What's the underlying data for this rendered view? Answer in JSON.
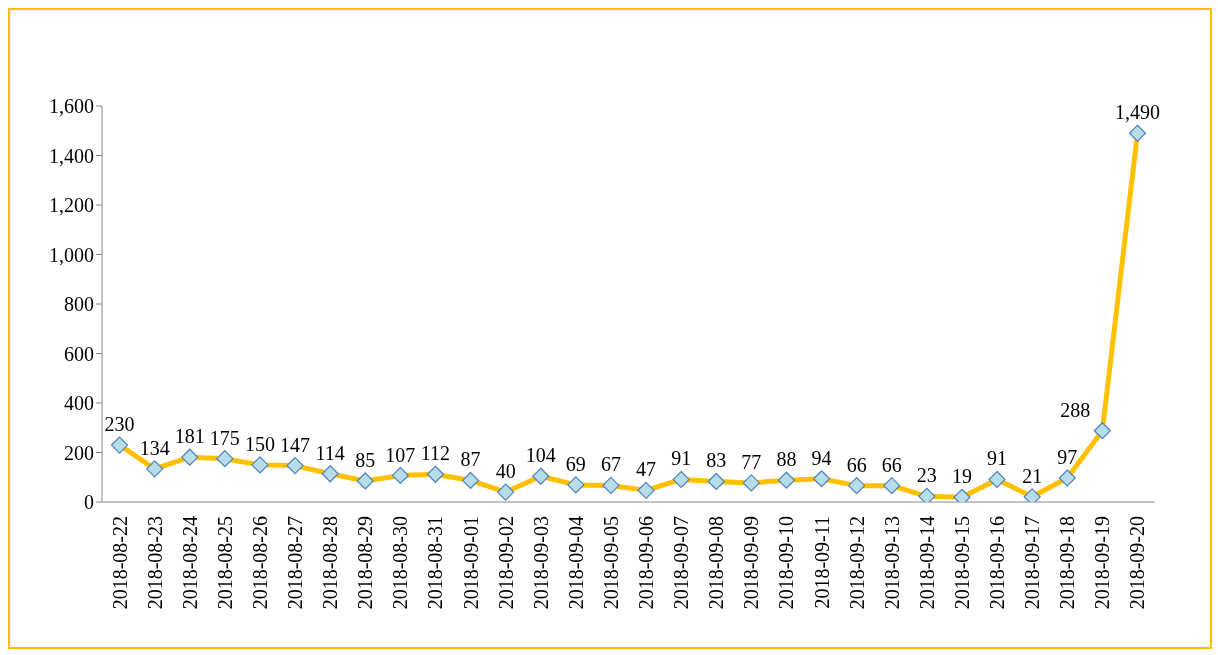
{
  "chart_data": {
    "type": "line",
    "categories": [
      "2018-08-22",
      "2018-08-23",
      "2018-08-24",
      "2018-08-25",
      "2018-08-26",
      "2018-08-27",
      "2018-08-28",
      "2018-08-29",
      "2018-08-30",
      "2018-08-31",
      "2018-09-01",
      "2018-09-02",
      "2018-09-03",
      "2018-09-04",
      "2018-09-05",
      "2018-09-06",
      "2018-09-07",
      "2018-09-08",
      "2018-09-09",
      "2018-09-10",
      "2018-09-11",
      "2018-09-12",
      "2018-09-13",
      "2018-09-14",
      "2018-09-15",
      "2018-09-16",
      "2018-09-17",
      "2018-09-18",
      "2018-09-19",
      "2018-09-20"
    ],
    "series": [
      {
        "color": "#ffc000",
        "values": [
          230,
          134,
          181,
          175,
          150,
          147,
          114,
          85,
          107,
          112,
          87,
          40,
          104,
          69,
          67,
          47,
          91,
          83,
          77,
          88,
          94,
          66,
          66,
          23,
          19,
          91,
          21,
          97,
          288,
          1490
        ],
        "value_labels": [
          "230",
          "134",
          "181",
          "175",
          "150",
          "147",
          "114",
          "85",
          "107",
          "112",
          "87",
          "40",
          "104",
          "69",
          "67",
          "47",
          "91",
          "83",
          "77",
          "88",
          "94",
          "66",
          "66",
          "23",
          "19",
          "91",
          "21",
          "97",
          "288",
          "1,490"
        ]
      }
    ],
    "ylim": [
      0,
      1600
    ],
    "yticks": [
      0,
      200,
      400,
      600,
      800,
      {
        "value": 1000,
        "label": "1,000"
      },
      {
        "value": 1200,
        "label": "1,200"
      },
      {
        "value": 1400,
        "label": "1,400"
      },
      {
        "value": 1600,
        "label": "1,600"
      }
    ],
    "grid": false,
    "legend": false,
    "marker": "diamond"
  }
}
